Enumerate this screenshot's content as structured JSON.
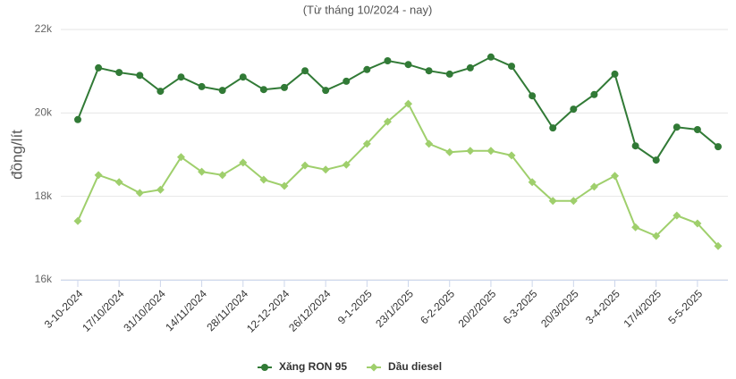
{
  "chart_data": {
    "type": "line",
    "title": "(Từ tháng 10/2024 - nay)",
    "y_label": "đồng/lít",
    "categories": [
      "3-10-2024",
      null,
      "17/10/2024",
      null,
      "31/10/2024",
      null,
      "14/11/2024",
      null,
      "28/11/2024",
      null,
      "12-12-2024",
      null,
      "26/12/2024",
      null,
      "9-1-2025",
      null,
      "23/1/2025",
      null,
      "6-2-2025",
      null,
      "20/2/2025",
      null,
      "6-3-2025",
      null,
      "20/3/2025",
      null,
      "3-4-2025",
      null,
      "17/4/2025",
      null,
      "5-5-2025",
      null
    ],
    "series": [
      {
        "name": "Xăng RON 95",
        "color": "#317a36",
        "marker": "circle",
        "values": [
          19840,
          21080,
          20970,
          20900,
          20520,
          20860,
          20630,
          20540,
          20860,
          20560,
          20610,
          21010,
          20540,
          20760,
          21040,
          21250,
          21160,
          21010,
          20930,
          21080,
          21340,
          21120,
          20410,
          19640,
          20090,
          20440,
          20930,
          19210,
          18870,
          19660,
          19600,
          19190
        ]
      },
      {
        "name": "Dầu diesel",
        "color": "#9fcf6c",
        "marker": "diamond",
        "values": [
          17410,
          18510,
          18340,
          18080,
          18160,
          18940,
          18590,
          18510,
          18810,
          18400,
          18250,
          18740,
          18640,
          18760,
          19260,
          19790,
          20220,
          19260,
          19060,
          19090,
          19090,
          18980,
          18340,
          17890,
          17890,
          18230,
          18490,
          17260,
          17050,
          17540,
          17350,
          16810
        ]
      }
    ],
    "ylim": [
      16000,
      22000
    ],
    "yticks": [
      {
        "value": 16000,
        "label": "16k"
      },
      {
        "value": 18000,
        "label": "18k"
      },
      {
        "value": 20000,
        "label": "20k"
      },
      {
        "value": 22000,
        "label": "22k"
      }
    ],
    "grid": true,
    "legend": "bottom"
  }
}
